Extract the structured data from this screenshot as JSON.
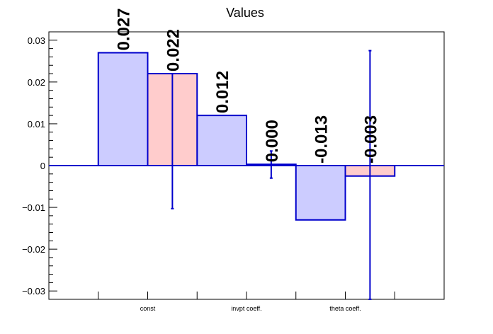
{
  "chart_data": {
    "type": "bar",
    "title": "Values",
    "categories": [
      "const",
      "invpt coeff.",
      "theta coeff."
    ],
    "ylim": [
      -0.032,
      0.032
    ],
    "yticks": [
      -0.03,
      -0.02,
      -0.01,
      0,
      0.01,
      0.02,
      0.03
    ],
    "ytick_labels": [
      "−0.03",
      "−0.02",
      "−0.01",
      "0",
      "0.01",
      "0.02",
      "0.03"
    ],
    "grid": false,
    "series": [
      {
        "color": "#ccccff",
        "values": [
          0.027,
          0.012,
          -0.013
        ],
        "labels": [
          "0.027",
          "0.012",
          "-0.013"
        ],
        "errors": [
          null,
          null,
          null
        ]
      },
      {
        "color": "#ffcccc",
        "values": [
          0.022,
          0.0003,
          -0.0025
        ],
        "labels": [
          "0.022",
          "0.000",
          "-0.003"
        ],
        "errors": [
          {
            "low": -0.0103,
            "high": 0.022
          },
          {
            "low": -0.003,
            "high": 0.0035
          },
          {
            "low": -0.032,
            "high": 0.0275
          }
        ]
      }
    ],
    "outline_color": "#0000cc"
  }
}
